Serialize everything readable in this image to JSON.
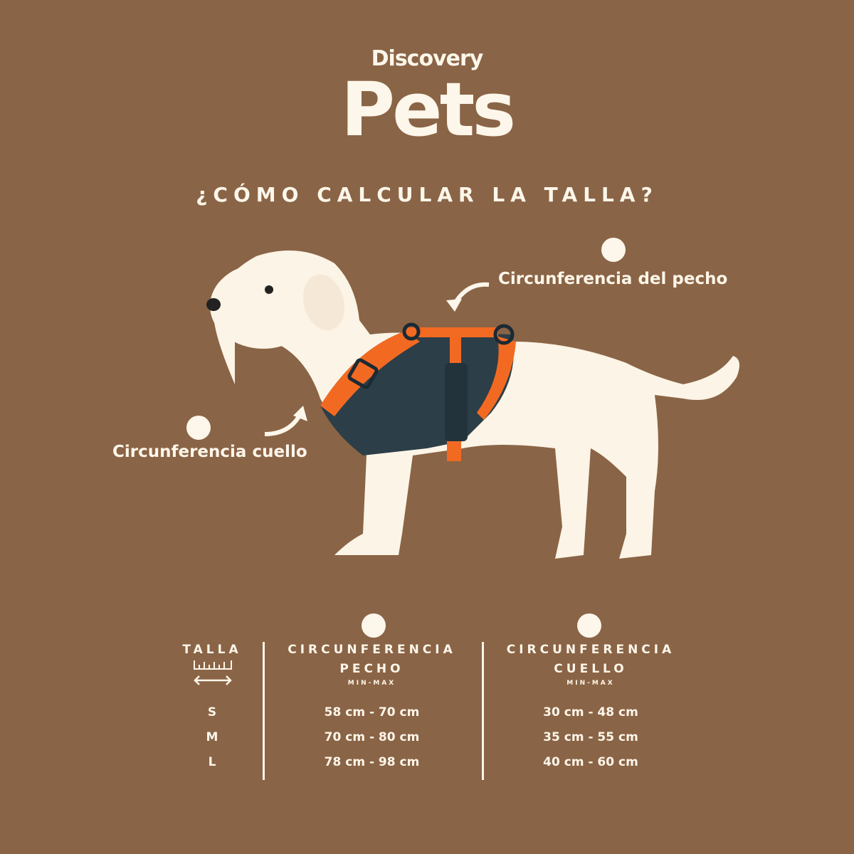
{
  "logo": {
    "brand_top": "Discovery",
    "brand_main": "Pets"
  },
  "title": "¿CÓMO CALCULAR LA TALLA?",
  "callouts": {
    "chest": "Circunferencia del pecho",
    "neck": "Circunferencia cuello"
  },
  "colors": {
    "background": "#8a6446",
    "text": "#fdf6ea",
    "harness_orange": "#f26a22",
    "harness_dark": "#2c3e48"
  },
  "table": {
    "columns": [
      {
        "title": "TALLA",
        "subtitle": "",
        "icon": "ruler-icon"
      },
      {
        "title": "CIRCUNFERENCIA",
        "title2": "PECHO",
        "subtitle": "MIN-MAX",
        "icon": "dog-body-icon"
      },
      {
        "title": "CIRCUNFERENCIA",
        "title2": "CUELLO",
        "subtitle": "MIN-MAX",
        "icon": "dog-head-icon"
      }
    ],
    "rows": [
      {
        "size": "S",
        "chest": "58 cm - 70 cm",
        "neck": "30 cm - 48 cm"
      },
      {
        "size": "M",
        "chest": "70 cm - 80 cm",
        "neck": "35 cm - 55 cm"
      },
      {
        "size": "L",
        "chest": "78 cm - 98 cm",
        "neck": "40 cm - 60 cm"
      }
    ]
  }
}
